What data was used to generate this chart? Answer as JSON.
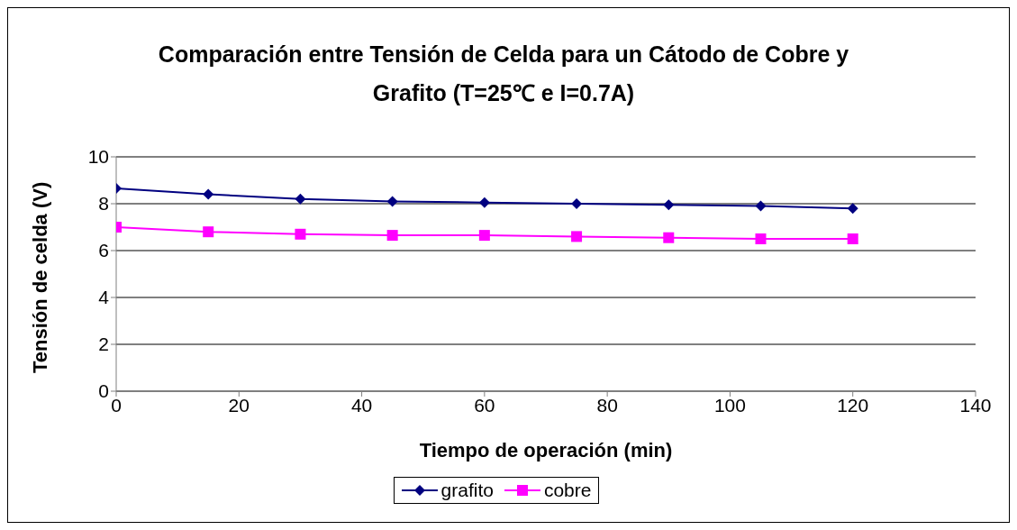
{
  "chart_data": {
    "type": "line",
    "title": "Comparación entre Tensión de Celda para un Cátodo de Cobre y Grafito (T=25℃ e I=0.7A)",
    "xlabel": "Tiempo de operación (min)",
    "ylabel": "Tensión de celda (V)",
    "x": [
      0,
      15,
      30,
      45,
      60,
      75,
      90,
      105,
      120
    ],
    "series": [
      {
        "name": "grafito",
        "color": "#000080",
        "marker": "diamond",
        "values": [
          8.65,
          8.4,
          8.2,
          8.1,
          8.05,
          8.0,
          7.95,
          7.9,
          7.8
        ]
      },
      {
        "name": "cobre",
        "color": "#ff00ff",
        "marker": "square",
        "values": [
          7.0,
          6.8,
          6.7,
          6.65,
          6.65,
          6.6,
          6.55,
          6.5,
          6.5
        ]
      }
    ],
    "xlim": [
      0,
      140
    ],
    "xticks": [
      0,
      20,
      40,
      60,
      80,
      100,
      120,
      140
    ],
    "ylim": [
      0,
      10
    ],
    "yticks": [
      0,
      2,
      4,
      6,
      8,
      10
    ],
    "grid": "y",
    "legend": "bottom",
    "line_style": "solid"
  }
}
